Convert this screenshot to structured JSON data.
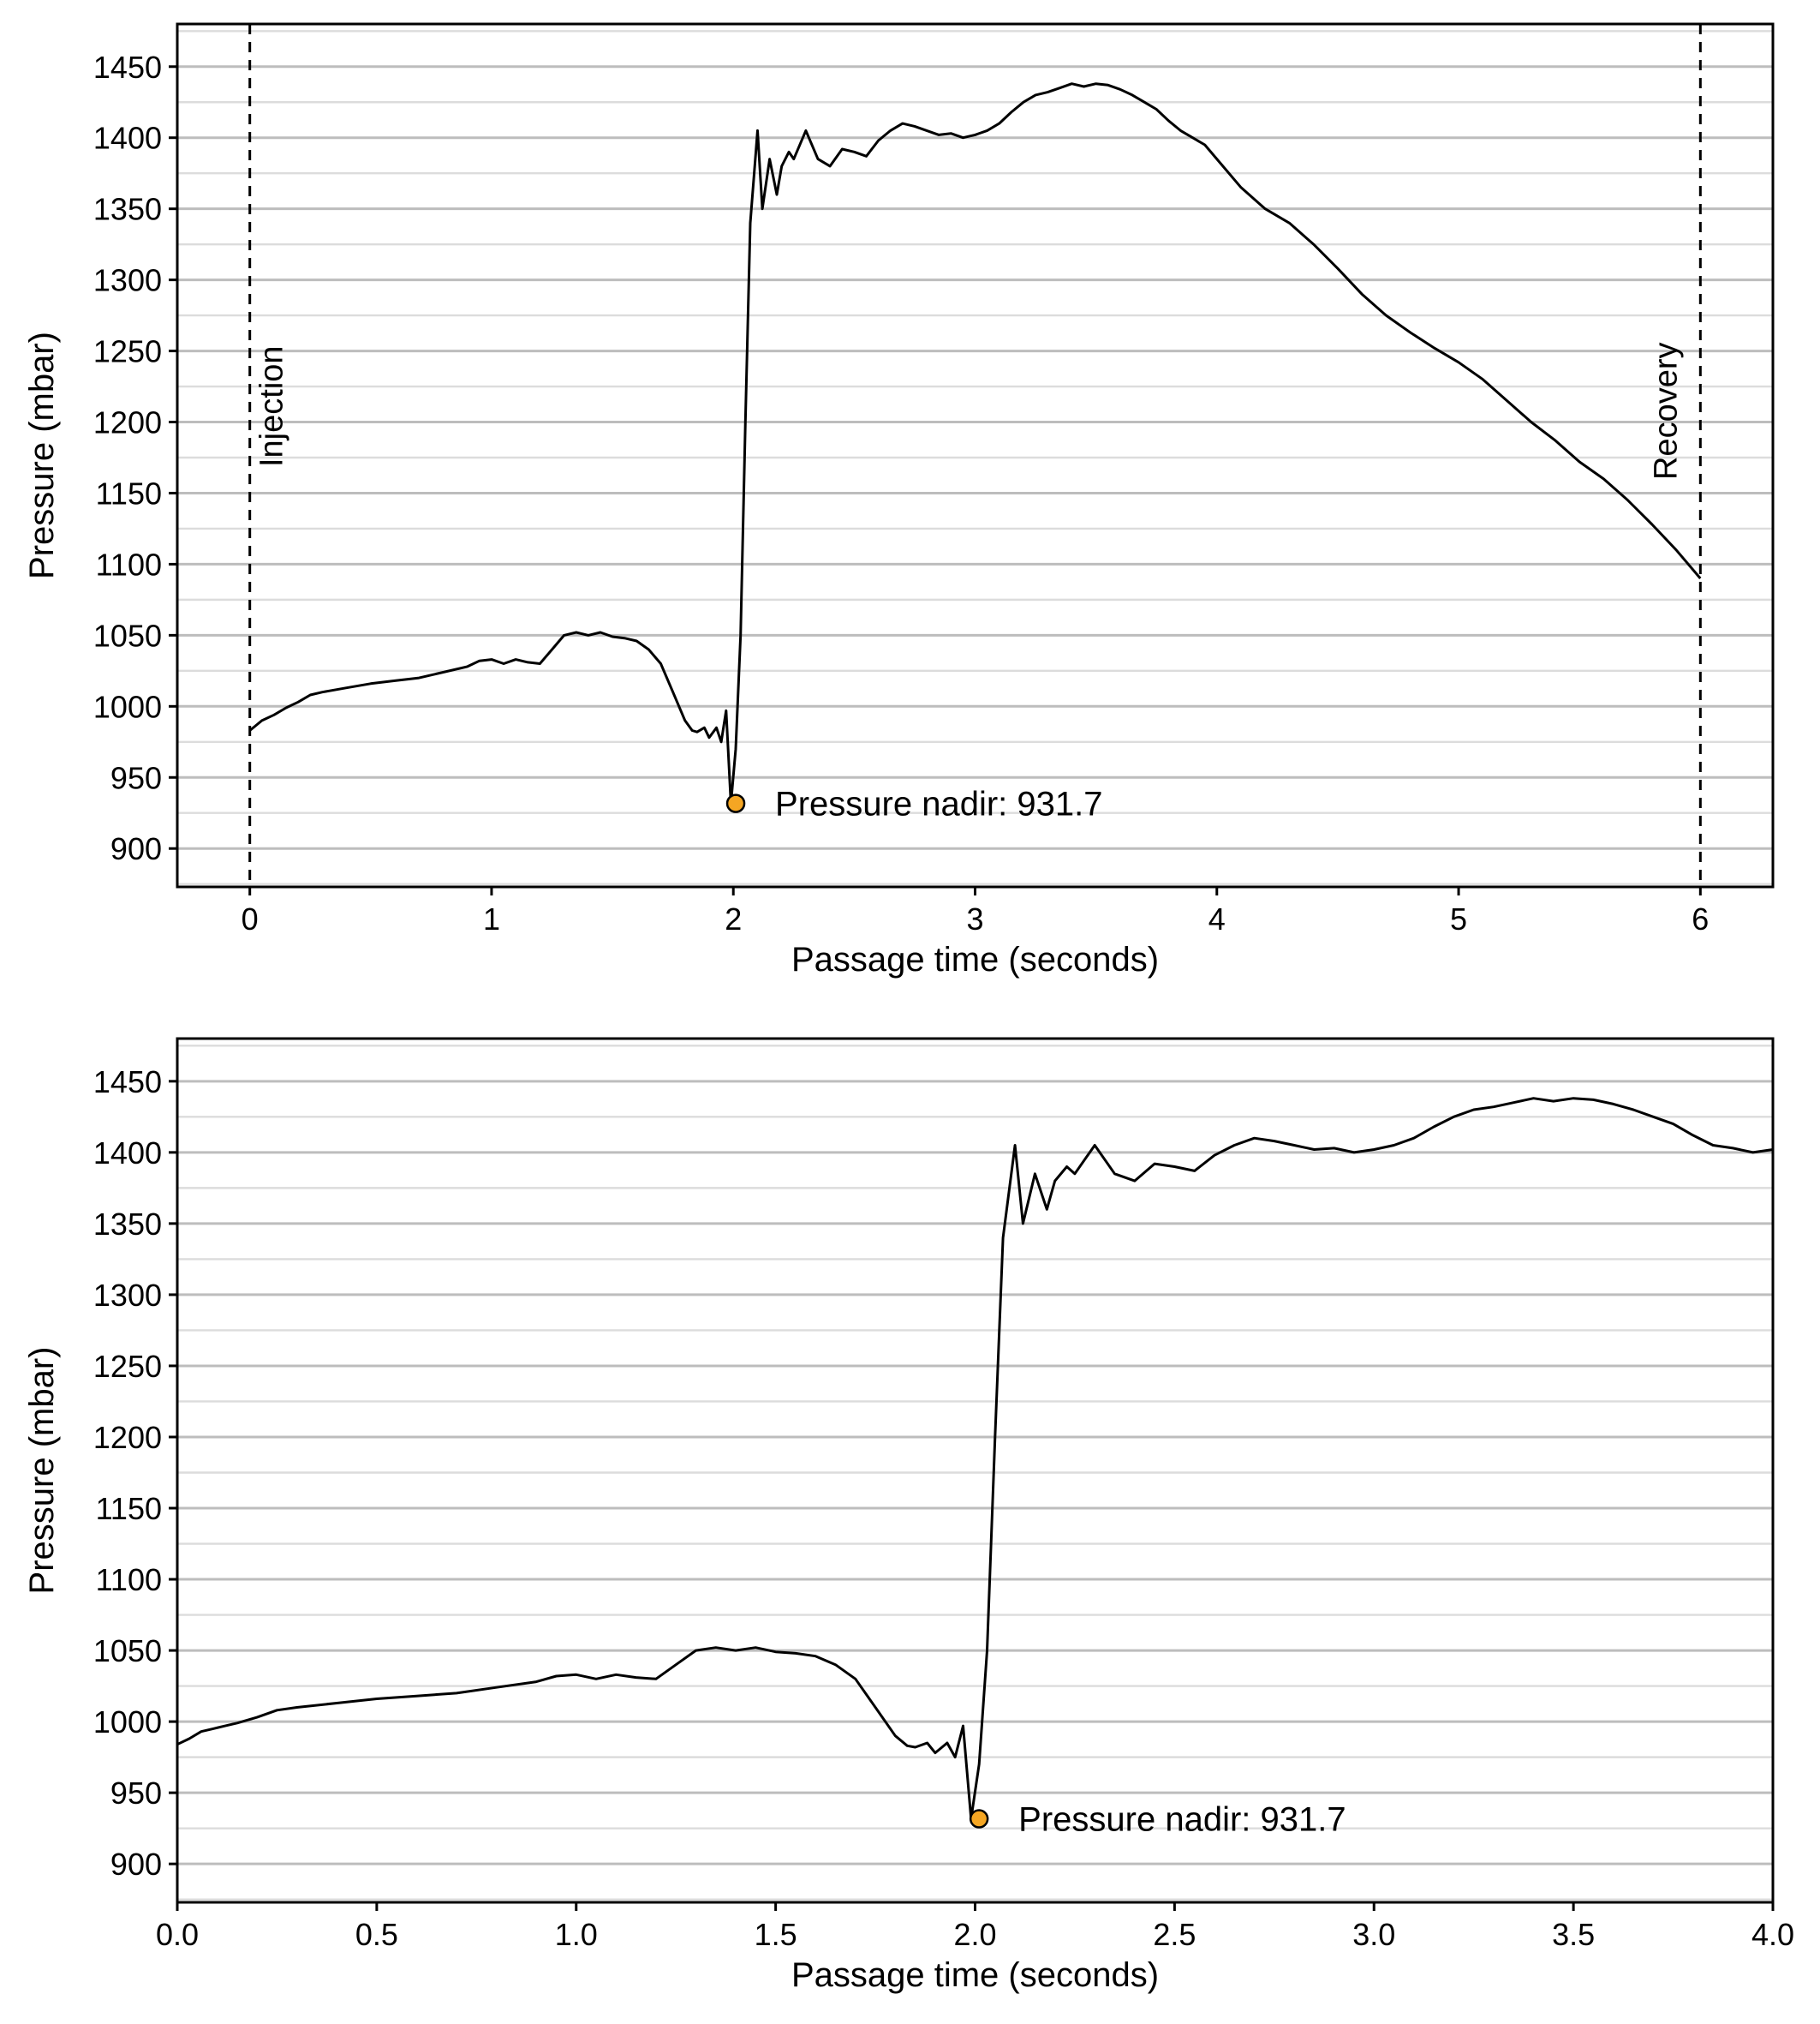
{
  "chart_data": [
    {
      "type": "line",
      "xlabel": "Passage time (seconds)",
      "ylabel": "Pressure (mbar)",
      "xlim": [
        -0.3,
        6.3
      ],
      "ylim": [
        873,
        1480
      ],
      "x_ticks": [
        0,
        1,
        2,
        3,
        4,
        5,
        6
      ],
      "x_tick_labels": [
        "0",
        "1",
        "2",
        "3",
        "4",
        "5",
        "6"
      ],
      "y_ticks": [
        900,
        950,
        1000,
        1050,
        1100,
        1150,
        1200,
        1250,
        1300,
        1350,
        1400,
        1450
      ],
      "y_tick_labels": [
        "900",
        "950",
        "1000",
        "1050",
        "1100",
        "1150",
        "1200",
        "1250",
        "1300",
        "1350",
        "1400",
        "1450"
      ],
      "y_minor_grid": [
        875,
        925,
        975,
        1025,
        1075,
        1125,
        1175,
        1225,
        1275,
        1325,
        1375,
        1425,
        1475
      ],
      "grid": "horizontal",
      "series": [
        {
          "line_color": "#000000",
          "x": [
            0,
            0.05,
            0.1,
            0.15,
            0.2,
            0.25,
            0.3,
            0.4,
            0.5,
            0.6,
            0.7,
            0.8,
            0.9,
            0.95,
            1.0,
            1.05,
            1.1,
            1.15,
            1.2,
            1.25,
            1.3,
            1.35,
            1.4,
            1.45,
            1.5,
            1.55,
            1.6,
            1.65,
            1.7,
            1.75,
            1.8,
            1.83,
            1.85,
            1.88,
            1.9,
            1.93,
            1.95,
            1.97,
            1.99,
            2.01,
            2.03,
            2.05,
            2.07,
            2.1,
            2.12,
            2.15,
            2.18,
            2.2,
            2.23,
            2.25,
            2.3,
            2.35,
            2.4,
            2.45,
            2.5,
            2.55,
            2.6,
            2.65,
            2.7,
            2.75,
            2.8,
            2.85,
            2.9,
            2.95,
            3.0,
            3.05,
            3.1,
            3.15,
            3.2,
            3.25,
            3.3,
            3.35,
            3.4,
            3.45,
            3.5,
            3.55,
            3.6,
            3.65,
            3.7,
            3.75,
            3.8,
            3.85,
            3.9,
            3.95,
            4.0,
            4.1,
            4.2,
            4.3,
            4.4,
            4.5,
            4.6,
            4.7,
            4.8,
            4.9,
            5.0,
            5.1,
            5.2,
            5.3,
            5.4,
            5.5,
            5.6,
            5.7,
            5.8,
            5.9,
            6.0
          ],
          "y": [
            983,
            990,
            994,
            999,
            1003,
            1008,
            1010,
            1013,
            1016,
            1018,
            1020,
            1024,
            1028,
            1032,
            1033,
            1030,
            1033,
            1031,
            1030,
            1040,
            1050,
            1052,
            1050,
            1052,
            1049,
            1048,
            1046,
            1040,
            1030,
            1010,
            990,
            983,
            982,
            985,
            978,
            985,
            975,
            997,
            931.7,
            970,
            1050,
            1200,
            1340,
            1405,
            1350,
            1385,
            1360,
            1380,
            1390,
            1385,
            1405,
            1385,
            1380,
            1392,
            1390,
            1387,
            1398,
            1405,
            1410,
            1408,
            1405,
            1402,
            1403,
            1400,
            1402,
            1405,
            1410,
            1418,
            1425,
            1430,
            1432,
            1435,
            1438,
            1436,
            1438,
            1437,
            1434,
            1430,
            1425,
            1420,
            1412,
            1405,
            1400,
            1395,
            1385,
            1365,
            1350,
            1340,
            1325,
            1308,
            1290,
            1275,
            1263,
            1252,
            1242,
            1230,
            1215,
            1200,
            1187,
            1172,
            1160,
            1145,
            1128,
            1110,
            1090
          ]
        }
      ],
      "vlines": [
        {
          "x": 0,
          "style": "dashed",
          "label": "Injection"
        },
        {
          "x": 6,
          "style": "dashed",
          "label": "Recovery"
        }
      ],
      "annotations": [
        {
          "x": 2.01,
          "y": 931.7,
          "marker_color": "#f5a623",
          "text": "Pressure nadir: 931.7"
        }
      ]
    },
    {
      "type": "line",
      "xlabel": "Passage time (seconds)",
      "ylabel": "Pressure (mbar)",
      "xlim": [
        0.0,
        4.0
      ],
      "ylim": [
        873,
        1480
      ],
      "x_ticks": [
        0.0,
        0.5,
        1.0,
        1.5,
        2.0,
        2.5,
        3.0,
        3.5,
        4.0
      ],
      "x_tick_labels": [
        "0.0",
        "0.5",
        "1.0",
        "1.5",
        "2.0",
        "2.5",
        "3.0",
        "3.5",
        "4.0"
      ],
      "y_ticks": [
        900,
        950,
        1000,
        1050,
        1100,
        1150,
        1200,
        1250,
        1300,
        1350,
        1400,
        1450
      ],
      "y_tick_labels": [
        "900",
        "950",
        "1000",
        "1050",
        "1100",
        "1150",
        "1200",
        "1250",
        "1300",
        "1350",
        "1400",
        "1450"
      ],
      "y_minor_grid": [
        875,
        925,
        975,
        1025,
        1075,
        1125,
        1175,
        1225,
        1275,
        1325,
        1375,
        1425,
        1475
      ],
      "grid": "horizontal",
      "series": [
        {
          "line_color": "#000000",
          "x": [
            0,
            0.03,
            0.06,
            0.09,
            0.12,
            0.15,
            0.2,
            0.25,
            0.3,
            0.4,
            0.5,
            0.6,
            0.7,
            0.8,
            0.9,
            0.95,
            1.0,
            1.05,
            1.1,
            1.15,
            1.2,
            1.25,
            1.3,
            1.35,
            1.4,
            1.45,
            1.5,
            1.55,
            1.6,
            1.65,
            1.7,
            1.75,
            1.8,
            1.83,
            1.85,
            1.88,
            1.9,
            1.93,
            1.95,
            1.97,
            1.99,
            2.01,
            2.03,
            2.05,
            2.07,
            2.1,
            2.12,
            2.15,
            2.18,
            2.2,
            2.23,
            2.25,
            2.3,
            2.35,
            2.4,
            2.45,
            2.5,
            2.55,
            2.6,
            2.65,
            2.7,
            2.75,
            2.8,
            2.85,
            2.9,
            2.95,
            3.0,
            3.05,
            3.1,
            3.15,
            3.2,
            3.25,
            3.3,
            3.35,
            3.4,
            3.45,
            3.5,
            3.55,
            3.6,
            3.65,
            3.7,
            3.75,
            3.8,
            3.85,
            3.9,
            3.95,
            4.0
          ],
          "y": [
            984,
            988,
            993,
            995,
            997,
            999,
            1003,
            1008,
            1010,
            1013,
            1016,
            1018,
            1020,
            1024,
            1028,
            1032,
            1033,
            1030,
            1033,
            1031,
            1030,
            1040,
            1050,
            1052,
            1050,
            1052,
            1049,
            1048,
            1046,
            1040,
            1030,
            1010,
            990,
            983,
            982,
            985,
            978,
            985,
            975,
            997,
            931.7,
            970,
            1050,
            1200,
            1340,
            1405,
            1350,
            1385,
            1360,
            1380,
            1390,
            1385,
            1405,
            1385,
            1380,
            1392,
            1390,
            1387,
            1398,
            1405,
            1410,
            1408,
            1405,
            1402,
            1403,
            1400,
            1402,
            1405,
            1410,
            1418,
            1425,
            1430,
            1432,
            1435,
            1438,
            1436,
            1438,
            1437,
            1434,
            1430,
            1425,
            1420,
            1412,
            1405,
            1403,
            1400,
            1402
          ]
        }
      ],
      "vlines": [],
      "annotations": [
        {
          "x": 2.01,
          "y": 931.7,
          "marker_color": "#f5a623",
          "text": "Pressure nadir: 931.7"
        }
      ]
    }
  ]
}
